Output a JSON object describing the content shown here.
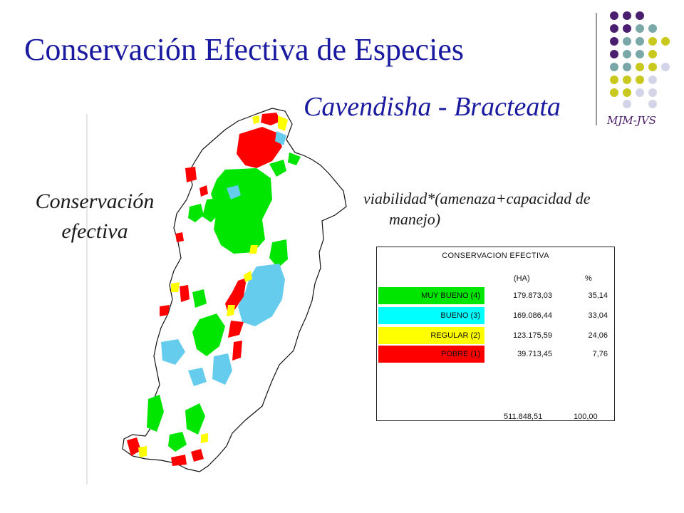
{
  "slide": {
    "title": "Conservación Efectiva de Especies",
    "subtitle": "Cavendisha - Bracteata",
    "author": "MJM-JVS",
    "left_label_line1": "Conservación",
    "left_label_line2": "efectiva",
    "formula_line1": "viabilidad*(amenaza+capacidad de",
    "formula_line2": "manejo)"
  },
  "colors": {
    "title": "#1a1aa0",
    "muy_bueno": "#00e600",
    "bueno": "#00ffff",
    "regular": "#ffff00",
    "pobre": "#ff0000",
    "dot_purple": "#4b1f6f",
    "dot_teal": "#7aa7a7",
    "dot_olive": "#c8c81e",
    "dot_lavender": "#d4d4e8"
  },
  "table": {
    "header": "CONSERVACION  EFECTIVA",
    "col_ha": "(HA)",
    "col_pct": "%",
    "rows": [
      {
        "category": "MUY BUENO (4)",
        "ha": "179.873,03",
        "pct": "35,14",
        "color": "#00e600"
      },
      {
        "category": "BUENO (3)",
        "ha": "169.086,44",
        "pct": "33,04",
        "color": "#00ffff"
      },
      {
        "category": "REGULAR (2)",
        "ha": "123.175,59",
        "pct": "24,06",
        "color": "#ffff00"
      },
      {
        "category": "POBRE (1)",
        "ha": "39.713,45",
        "pct": "7,76",
        "color": "#ff0000"
      }
    ],
    "total_ha": "511.848,51",
    "total_pct": "100,00"
  }
}
